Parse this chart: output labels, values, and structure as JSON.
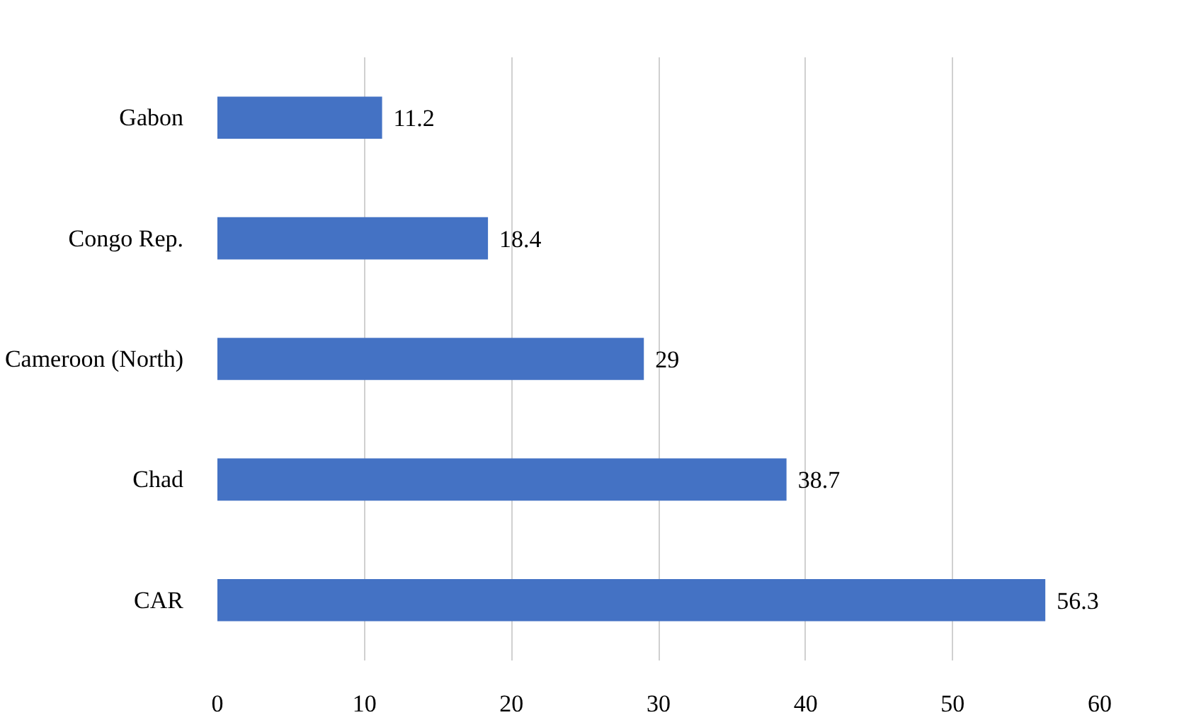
{
  "chart_data": {
    "type": "bar",
    "orientation": "horizontal",
    "categories": [
      "Gabon",
      "Congo Rep.",
      "Cameroon (North)",
      "Chad",
      "CAR"
    ],
    "values": [
      11.2,
      18.4,
      29,
      38.7,
      56.3
    ],
    "color": "#4472c4",
    "xlim": [
      0,
      60
    ],
    "xticks": [
      0,
      10,
      20,
      30,
      40,
      50,
      60
    ],
    "grid": "x",
    "data_labels": true
  }
}
